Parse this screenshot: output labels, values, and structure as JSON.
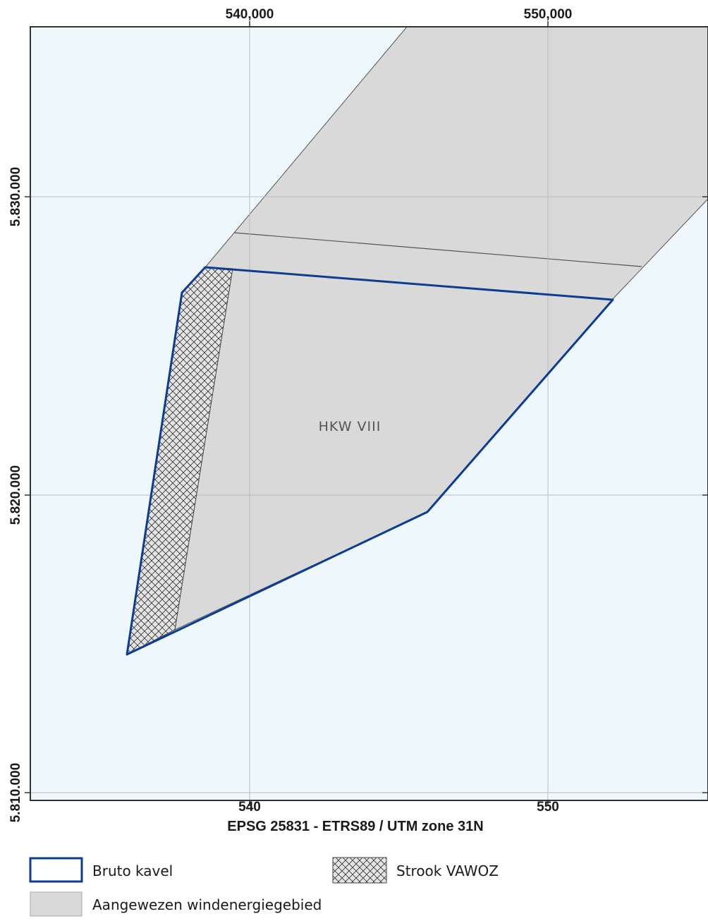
{
  "map": {
    "crs_label": "EPSG 25831 - ETRS89 / UTM zone 31N",
    "zone_label": "HKW VIII",
    "x_ticks_top": [
      "540,000",
      "550,000"
    ],
    "x_ticks_bottom": [
      "540",
      "550"
    ],
    "y_ticks": [
      "5.830.000",
      "5.820.000",
      "5.810.000"
    ],
    "colors": {
      "sea": "#eef8fc",
      "wind_area": "#d9d9d9",
      "kavel_outline": "#0d3d91",
      "grid": "#bbbbbb",
      "frame": "#333333"
    }
  },
  "legend": {
    "items": [
      {
        "key": "bruto-kavel",
        "label": "Bruto kavel"
      },
      {
        "key": "strook-vawoz",
        "label": "Strook VAWOZ"
      },
      {
        "key": "windenergiegebied",
        "label": "Aangewezen windenergiegebied"
      }
    ]
  }
}
